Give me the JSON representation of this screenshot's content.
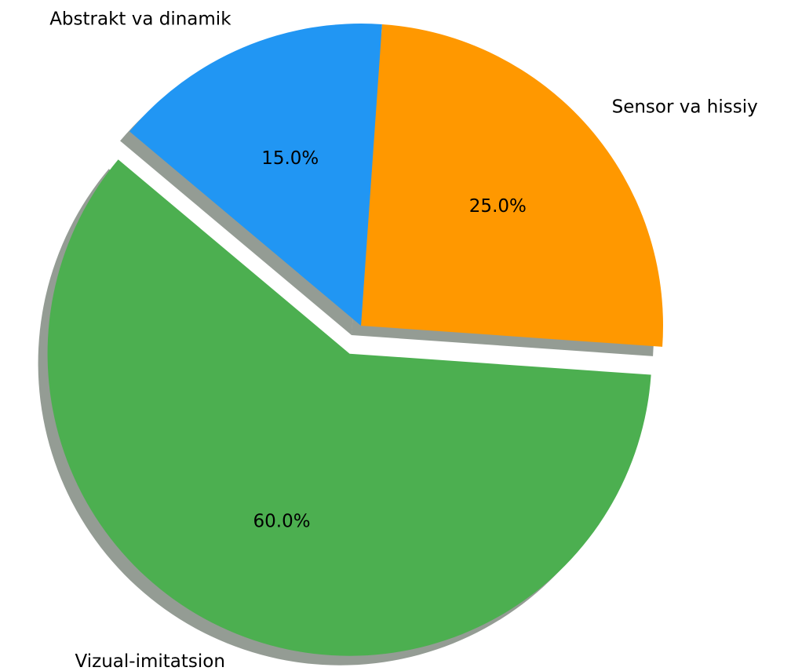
{
  "chart_data": {
    "type": "pie",
    "categories": [
      "Vizual-imitatsion",
      "Sensor va hissiy",
      "Abstrakt va dinamik"
    ],
    "values": [
      60,
      25,
      15
    ],
    "value_labels": [
      "60.0%",
      "25.0%",
      "15.0%"
    ],
    "colors": [
      "#4caf50",
      "#ff9800",
      "#2196f3"
    ],
    "explode": [
      0.1,
      0,
      0
    ],
    "startangle": 140,
    "shadow": true
  }
}
